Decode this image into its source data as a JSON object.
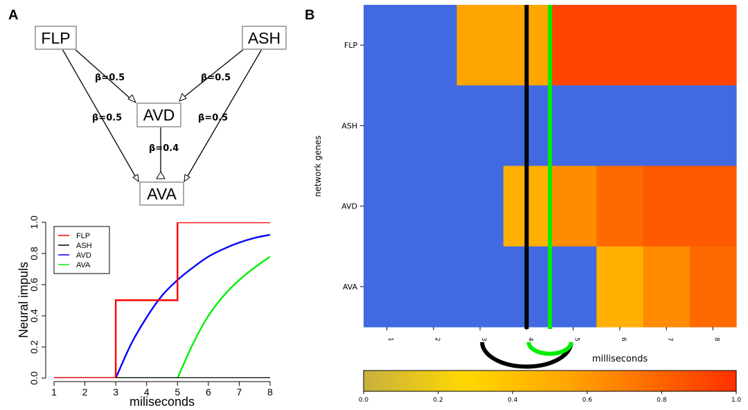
{
  "panel_a": {
    "letter": "A",
    "network": {
      "nodes": [
        {
          "id": "FLP",
          "label": "FLP"
        },
        {
          "id": "ASH",
          "label": "ASH"
        },
        {
          "id": "AVD",
          "label": "AVD"
        },
        {
          "id": "AVA",
          "label": "AVA"
        }
      ],
      "edges": [
        {
          "from": "FLP",
          "to": "AVD",
          "label": "β=0.5"
        },
        {
          "from": "ASH",
          "to": "AVD",
          "label": "β=0.5"
        },
        {
          "from": "FLP",
          "to": "AVA",
          "label": "β=0.5"
        },
        {
          "from": "ASH",
          "to": "AVA",
          "label": "β=0.5"
        },
        {
          "from": "AVD",
          "to": "AVA",
          "label": "β=0.4"
        }
      ]
    }
  },
  "panel_b": {
    "letter": "B"
  },
  "chart_data": [
    {
      "type": "line",
      "xlabel": "miliseconds",
      "ylabel": "Neural impuls",
      "xlim": [
        1,
        8
      ],
      "ylim": [
        0,
        1
      ],
      "xticks": [
        "1",
        "2",
        "3",
        "4",
        "5",
        "6",
        "7",
        "8"
      ],
      "yticks": [
        "0.0",
        "0.2",
        "0.4",
        "0.6",
        "0.8",
        "1.0"
      ],
      "legend_position": "top-left",
      "series": [
        {
          "name": "FLP",
          "color": "#ff0000",
          "step": true,
          "points": [
            [
              1,
              0
            ],
            [
              3,
              0
            ],
            [
              3,
              0.5
            ],
            [
              5,
              0.5
            ],
            [
              5,
              1
            ],
            [
              8,
              1
            ]
          ]
        },
        {
          "name": "ASH",
          "color": "#000000",
          "step": true,
          "points": [
            [
              1,
              0
            ],
            [
              8,
              0
            ]
          ]
        },
        {
          "name": "AVD",
          "color": "#0000ff",
          "step": false,
          "points": [
            [
              1,
              0
            ],
            [
              3,
              0
            ],
            [
              3.5,
              0.22
            ],
            [
              4,
              0.39
            ],
            [
              4.5,
              0.53
            ],
            [
              5,
              0.63
            ],
            [
              5.5,
              0.71
            ],
            [
              6,
              0.78
            ],
            [
              6.5,
              0.83
            ],
            [
              7,
              0.87
            ],
            [
              7.5,
              0.9
            ],
            [
              8,
              0.92
            ]
          ]
        },
        {
          "name": "AVA",
          "color": "#00ee00",
          "step": false,
          "points": [
            [
              1,
              0
            ],
            [
              5,
              0
            ],
            [
              5.5,
              0.22
            ],
            [
              6,
              0.4
            ],
            [
              6.5,
              0.53
            ],
            [
              7,
              0.63
            ],
            [
              7.5,
              0.71
            ],
            [
              8,
              0.78
            ]
          ]
        }
      ]
    },
    {
      "type": "heatmap",
      "xlabel": "milliseconds",
      "ylabel": "network genes",
      "xlim": [
        0.5,
        8.5
      ],
      "xticks": [
        "1",
        "2",
        "3",
        "4",
        "5",
        "6",
        "7",
        "8"
      ],
      "rows": [
        "FLP",
        "ASH",
        "AVD",
        "AVA"
      ],
      "background_color": "#4169e1",
      "segments": {
        "FLP": [
          [
            0.5,
            2.5,
            0
          ],
          [
            2.5,
            4.5,
            0.5
          ],
          [
            4.5,
            8.5,
            1.0
          ]
        ],
        "ASH": [
          [
            0.5,
            8.5,
            0
          ]
        ],
        "AVD": [
          [
            0.5,
            3.5,
            0
          ],
          [
            3.5,
            4.5,
            0.39
          ],
          [
            4.5,
            5.5,
            0.63
          ],
          [
            5.5,
            6.5,
            0.78
          ],
          [
            6.5,
            7.5,
            0.87
          ],
          [
            7.5,
            8.5,
            0.92
          ]
        ],
        "AVA": [
          [
            0.5,
            5.5,
            0
          ],
          [
            5.5,
            6.5,
            0.4
          ],
          [
            6.5,
            7.5,
            0.63
          ],
          [
            7.5,
            8.5,
            0.78
          ]
        ]
      },
      "vertical_markers": [
        {
          "x": 4.0,
          "color": "#000000"
        },
        {
          "x": 4.5,
          "color": "#00ee00"
        }
      ],
      "arcs": [
        {
          "from": 3,
          "to": 5,
          "color": "#000000"
        },
        {
          "from": 4,
          "to": 5,
          "color": "#00ee00"
        }
      ],
      "colorbar": {
        "min": 0,
        "max": 1,
        "ticks": [
          "0.0",
          "0.2",
          "0.4",
          "0.6",
          "0.8",
          "1.0"
        ],
        "stops": [
          "#c8b040",
          "#ffd800",
          "#ffa500",
          "#ff5800",
          "#ff3000"
        ]
      }
    }
  ]
}
